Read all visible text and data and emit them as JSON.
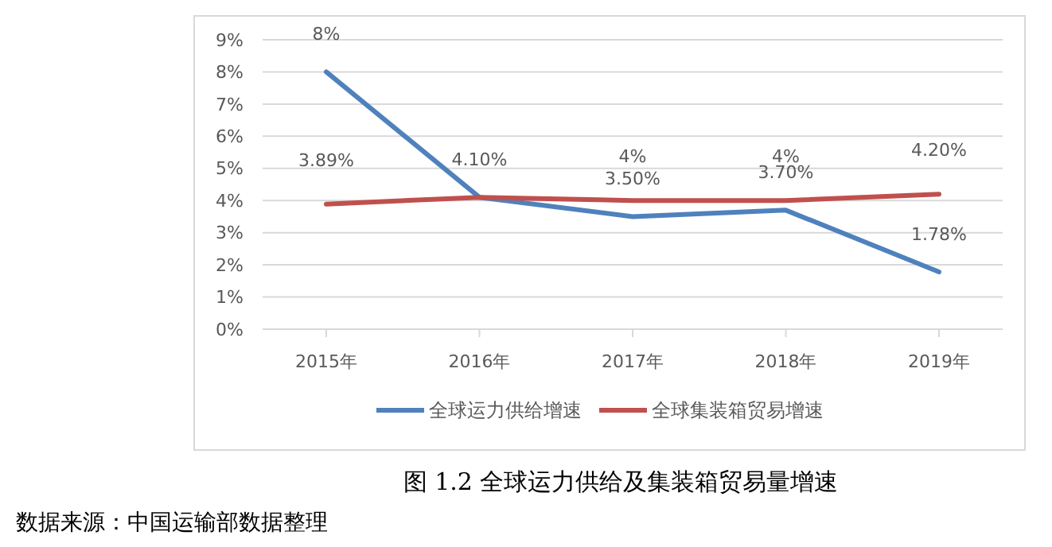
{
  "chart_data": {
    "type": "line",
    "title": "图 1.2 全球运力供给及集装箱贸易量增速",
    "annotations": [
      "数据来源：中国运输部数据整理"
    ],
    "categories": [
      "2015年",
      "2016年",
      "2017年",
      "2018年",
      "2019年"
    ],
    "ylim": [
      0,
      9
    ],
    "yticks": [
      {
        "value": 0,
        "label": "0%"
      },
      {
        "value": 1,
        "label": "1%"
      },
      {
        "value": 2,
        "label": "2%"
      },
      {
        "value": 3,
        "label": "3%"
      },
      {
        "value": 4,
        "label": "4%"
      },
      {
        "value": 5,
        "label": "5%"
      },
      {
        "value": 6,
        "label": "6%"
      },
      {
        "value": 7,
        "label": "7%"
      },
      {
        "value": 8,
        "label": "8%"
      },
      {
        "value": 9,
        "label": "9%"
      }
    ],
    "grid": "y",
    "legend": "bottom",
    "marker": "none",
    "line_style": "solid",
    "series": [
      {
        "name": "全球运力供给增速",
        "color": "#4f81bd",
        "values": [
          8,
          4.1,
          3.5,
          3.7,
          1.78
        ],
        "value_labels": [
          "8%",
          "4.10%",
          "3.50%",
          "3.70%",
          "1.78%"
        ]
      },
      {
        "name": "全球集装箱贸易增速",
        "color": "#c0504d",
        "values": [
          3.89,
          4.1,
          4,
          4,
          4.2
        ],
        "value_labels": [
          "3.89%",
          null,
          "4%",
          "4%",
          "4.20%"
        ]
      }
    ]
  }
}
